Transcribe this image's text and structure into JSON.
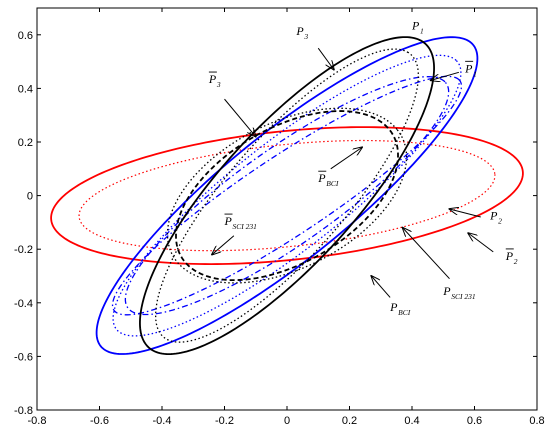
{
  "chart_data": {
    "type": "line",
    "title": "",
    "xlabel": "",
    "ylabel": "",
    "xlim": [
      -0.8,
      0.8
    ],
    "ylim": [
      -0.8,
      0.7
    ],
    "grid": false,
    "x_ticks": [
      -0.8,
      -0.6,
      -0.4,
      -0.2,
      0,
      0.2,
      0.4,
      0.6,
      0.8
    ],
    "y_ticks": [
      -0.8,
      -0.6,
      -0.4,
      -0.2,
      0,
      0.2,
      0.4,
      0.6
    ],
    "x_tick_labels": [
      "-0.8",
      "-0.6",
      "-0.4",
      "-0.2",
      "0",
      "0.2",
      "0.4",
      "0.6",
      "0.8"
    ],
    "y_tick_labels": [
      "-0.8",
      "-0.6",
      "-0.4",
      "-0.2",
      "0",
      "0.2",
      "0.4",
      "0.6"
    ],
    "series": [
      {
        "color": "#ff0000",
        "dash": "solid",
        "width": 1.8,
        "ellipse": {
          "cx": 0.0,
          "cy": 0.0,
          "a": 0.76,
          "b": 0.24,
          "angle_deg": 7
        }
      },
      {
        "color": "#ff0000",
        "dash": "dotted",
        "width": 1.2,
        "ellipse": {
          "cx": 0.0,
          "cy": 0.0,
          "a": 0.67,
          "b": 0.19,
          "angle_deg": 7
        }
      },
      {
        "color": "#0000ff",
        "dash": "solid",
        "width": 1.8,
        "ellipse": {
          "cx": 0.0,
          "cy": 0.0,
          "a": 0.82,
          "b": 0.22,
          "angle_deg": 44
        }
      },
      {
        "color": "#0000ff",
        "dash": "dotted",
        "width": 1.3,
        "ellipse": {
          "cx": 0.0,
          "cy": 0.0,
          "a": 0.74,
          "b": 0.19,
          "angle_deg": 43
        }
      },
      {
        "color": "#0000ff",
        "dash": "dashdot",
        "width": 1.3,
        "ellipse": {
          "cx": 0.0,
          "cy": 0.0,
          "a": 0.66,
          "b": 0.17,
          "angle_deg": 40
        }
      },
      {
        "color": "#0000ff",
        "dash": "dashdot",
        "width": 1.3,
        "ellipse": {
          "cx": 0.0,
          "cy": 0.0,
          "a": 0.7,
          "b": 0.14,
          "angle_deg": 38
        }
      },
      {
        "color": "#000000",
        "dash": "solid",
        "width": 1.8,
        "ellipse": {
          "cx": 0.0,
          "cy": 0.0,
          "a": 0.72,
          "b": 0.23,
          "angle_deg": 53
        }
      },
      {
        "color": "#000000",
        "dash": "dotted",
        "width": 1.3,
        "ellipse": {
          "cx": 0.0,
          "cy": 0.0,
          "a": 0.66,
          "b": 0.2,
          "angle_deg": 54
        }
      },
      {
        "color": "#000000",
        "dash": "dotted",
        "width": 1.3,
        "ellipse": {
          "cx": 0.0,
          "cy": 0.0,
          "a": 0.43,
          "b": 0.26,
          "angle_deg": 35
        }
      },
      {
        "color": "#000000",
        "dash": "dashed",
        "width": 1.8,
        "ellipse": {
          "cx": 0.0,
          "cy": 0.0,
          "a": 0.41,
          "b": 0.24,
          "angle_deg": 38
        }
      }
    ],
    "annotations": [
      {
        "main": "P",
        "sub": "1",
        "bar": false,
        "text_at": [
          0.4,
          0.62
        ],
        "arrow_from": null,
        "arrow_to": null
      },
      {
        "main": "P",
        "sub": "1",
        "bar": true,
        "text_at": [
          0.57,
          0.46
        ],
        "arrow_from": [
          0.55,
          0.46
        ],
        "arrow_to": [
          0.46,
          0.43
        ]
      },
      {
        "main": "P",
        "sub": "3",
        "bar": false,
        "text_at": [
          0.03,
          0.6
        ],
        "arrow_from": [
          0.1,
          0.55
        ],
        "arrow_to": [
          0.15,
          0.47
        ]
      },
      {
        "main": "P",
        "sub": "3",
        "bar": true,
        "text_at": [
          -0.25,
          0.42
        ],
        "arrow_from": [
          -0.2,
          0.36
        ],
        "arrow_to": [
          -0.1,
          0.22
        ]
      },
      {
        "main": "P",
        "sub": "BCI",
        "bar": true,
        "text_at": [
          0.1,
          0.05
        ],
        "arrow_from": [
          0.14,
          0.1
        ],
        "arrow_to": [
          0.24,
          0.18
        ]
      },
      {
        "main": "P",
        "sub": "SCI 231",
        "bar": true,
        "text_at": [
          -0.2,
          -0.11
        ],
        "arrow_from": [
          -0.17,
          -0.15
        ],
        "arrow_to": [
          -0.24,
          -0.22
        ]
      },
      {
        "main": "P",
        "sub": "BCI",
        "bar": false,
        "text_at": [
          0.33,
          -0.43
        ],
        "arrow_from": [
          0.33,
          -0.38
        ],
        "arrow_to": [
          0.27,
          -0.3
        ]
      },
      {
        "main": "P",
        "sub": "SCI 231",
        "bar": false,
        "text_at": [
          0.5,
          -0.37
        ],
        "arrow_from": [
          0.52,
          -0.31
        ],
        "arrow_to": [
          0.37,
          -0.12
        ]
      },
      {
        "main": "P",
        "sub": "2",
        "bar": false,
        "text_at": [
          0.65,
          -0.09
        ],
        "arrow_from": [
          0.62,
          -0.08
        ],
        "arrow_to": [
          0.52,
          -0.05
        ]
      },
      {
        "main": "P",
        "sub": "2",
        "bar": true,
        "text_at": [
          0.7,
          -0.24
        ],
        "arrow_from": [
          0.66,
          -0.21
        ],
        "arrow_to": [
          0.58,
          -0.14
        ]
      }
    ]
  }
}
